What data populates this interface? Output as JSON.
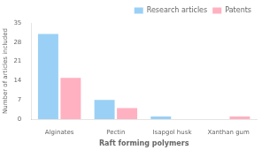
{
  "chart_data": {
    "type": "bar",
    "xlabel": "Raft forming polymers",
    "ylabel": "Number of articles included",
    "categories": [
      "Alginates",
      "Pectin",
      "Isapgol husk",
      "Xanthan gum"
    ],
    "series": [
      {
        "name": "Research articles",
        "values": [
          31,
          7,
          1,
          0
        ]
      },
      {
        "name": "Patents",
        "values": [
          15,
          4,
          0,
          1
        ]
      }
    ],
    "ylim": [
      0,
      35
    ],
    "yticks": [
      0,
      7,
      14,
      21,
      28,
      35
    ],
    "grid": false,
    "legend": "upper right"
  }
}
